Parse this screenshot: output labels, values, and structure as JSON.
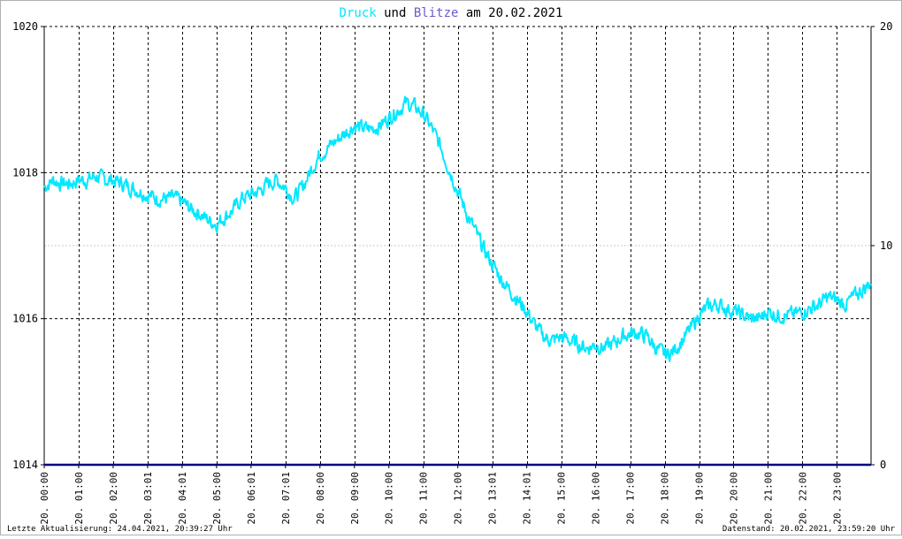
{
  "title_parts": {
    "druck": "Druck",
    "und": " und ",
    "blitze": "Blitze",
    "am_date": " am 20.02.2021"
  },
  "footer": {
    "left": "Letzte Aktualisierung: 24.04.2021, 20:39:27 Uhr",
    "right": "Datenstand: 20.02.2021, 23:59:20 Uhr"
  },
  "colors": {
    "druck": "#00e8ff",
    "blitze": "#6a5acd",
    "und_text": "#000000",
    "blitze_line": "#000080",
    "frame": "#000000",
    "major_grid": "#000000",
    "minor_grid": "#c8c8c8"
  },
  "chart_data": {
    "type": "line",
    "title": "Druck und Blitze am 20.02.2021",
    "x_categories": [
      "20. 00:00",
      "20. 01:00",
      "20. 02:00",
      "20. 03:01",
      "20. 04:01",
      "20. 05:00",
      "20. 06:01",
      "20. 07:01",
      "20. 08:00",
      "20. 09:00",
      "20. 10:00",
      "20. 11:00",
      "20. 12:00",
      "20. 13:01",
      "20. 14:01",
      "20. 15:00",
      "20. 16:00",
      "20. 17:00",
      "20. 18:00",
      "20. 19:00",
      "20. 20:00",
      "20. 21:00",
      "20. 22:00",
      "20. 23:00"
    ],
    "y_left": {
      "min": 1014,
      "max": 1020,
      "ticks": [
        1014,
        1016,
        1018,
        1020
      ]
    },
    "y_right": {
      "min": 0,
      "max": 20,
      "ticks": [
        0,
        10,
        20
      ]
    },
    "x_range_hours": [
      0,
      23.99
    ],
    "grid": true,
    "series": [
      {
        "name": "Druck",
        "axis": "left",
        "x_hours": [
          0,
          0.25,
          0.5,
          0.75,
          1,
          1.25,
          1.5,
          1.75,
          2,
          2.25,
          2.5,
          2.75,
          3,
          3.25,
          3.5,
          3.75,
          4,
          4.25,
          4.5,
          4.75,
          5,
          5.25,
          5.5,
          5.75,
          6,
          6.25,
          6.5,
          6.75,
          7,
          7.25,
          7.5,
          7.75,
          8,
          8.25,
          8.5,
          8.75,
          9,
          9.25,
          9.5,
          9.75,
          10,
          10.25,
          10.5,
          10.75,
          11,
          11.25,
          11.5,
          11.75,
          12,
          12.25,
          12.5,
          12.75,
          13,
          13.25,
          13.5,
          13.75,
          14,
          14.25,
          14.5,
          14.75,
          15,
          15.25,
          15.5,
          15.75,
          16,
          16.25,
          16.5,
          16.75,
          17,
          17.25,
          17.5,
          17.75,
          18,
          18.25,
          18.5,
          18.75,
          19,
          19.25,
          19.5,
          19.75,
          20,
          20.25,
          20.5,
          20.75,
          21,
          21.25,
          21.5,
          21.75,
          22,
          22.25,
          22.5,
          22.75,
          23,
          23.25,
          23.5,
          23.75,
          24
        ],
        "values": [
          1017.8,
          1017.9,
          1017.85,
          1017.85,
          1017.9,
          1017.9,
          1017.95,
          1017.9,
          1017.9,
          1017.85,
          1017.8,
          1017.75,
          1017.7,
          1017.65,
          1017.65,
          1017.65,
          1017.6,
          1017.5,
          1017.45,
          1017.35,
          1017.3,
          1017.4,
          1017.5,
          1017.65,
          1017.7,
          1017.75,
          1017.85,
          1017.9,
          1017.8,
          1017.65,
          1017.8,
          1018.05,
          1018.25,
          1018.35,
          1018.45,
          1018.55,
          1018.65,
          1018.6,
          1018.6,
          1018.65,
          1018.75,
          1018.85,
          1018.95,
          1018.9,
          1018.8,
          1018.6,
          1018.35,
          1018.05,
          1017.75,
          1017.45,
          1017.2,
          1016.95,
          1016.75,
          1016.55,
          1016.4,
          1016.25,
          1016.1,
          1015.9,
          1015.75,
          1015.7,
          1015.75,
          1015.7,
          1015.65,
          1015.6,
          1015.65,
          1015.6,
          1015.65,
          1015.75,
          1015.8,
          1015.8,
          1015.75,
          1015.6,
          1015.5,
          1015.55,
          1015.7,
          1015.85,
          1016.05,
          1016.15,
          1016.2,
          1016.15,
          1016.1,
          1016.05,
          1016.0,
          1016.0,
          1016.1,
          1016.05,
          1016.05,
          1016.05,
          1016.1,
          1016.15,
          1016.2,
          1016.3,
          1016.25,
          1016.2,
          1016.3,
          1016.4,
          1016.5
        ]
      },
      {
        "name": "Blitze",
        "axis": "right",
        "x_hours": [
          0,
          24
        ],
        "values": [
          0,
          0
        ]
      }
    ]
  }
}
